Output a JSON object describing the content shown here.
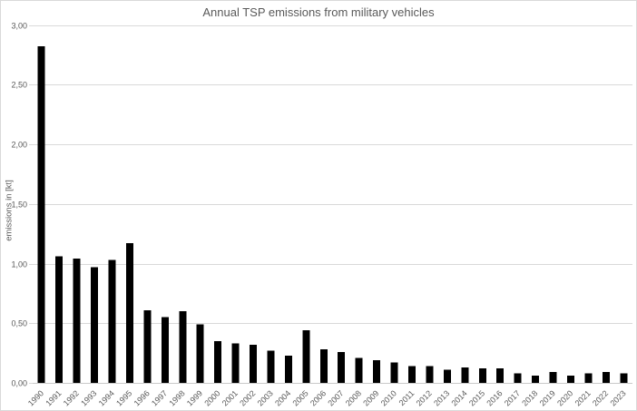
{
  "chart_data": {
    "type": "bar",
    "title": "Annual TSP emissions from military vehicles",
    "xlabel": "",
    "ylabel": "emissions in [kt]",
    "categories": [
      "1990",
      "1991",
      "1992",
      "1993",
      "1994",
      "1995",
      "1996",
      "1997",
      "1998",
      "1999",
      "2000",
      "2001",
      "2002",
      "2003",
      "2004",
      "2005",
      "2006",
      "2007",
      "2008",
      "2009",
      "2010",
      "2011",
      "2012",
      "2013",
      "2014",
      "2015",
      "2016",
      "2017",
      "2018",
      "2019",
      "2020",
      "2021",
      "2022",
      "2023"
    ],
    "values": [
      2.82,
      1.06,
      1.04,
      0.97,
      1.03,
      1.17,
      0.61,
      0.55,
      0.6,
      0.49,
      0.35,
      0.33,
      0.32,
      0.27,
      0.23,
      0.44,
      0.28,
      0.26,
      0.21,
      0.19,
      0.17,
      0.14,
      0.14,
      0.11,
      0.13,
      0.12,
      0.12,
      0.08,
      0.06,
      0.09,
      0.06,
      0.08,
      0.09,
      0.08
    ],
    "ylim": [
      0,
      3.0
    ],
    "ytick_step": 0.5,
    "ytick_labels": [
      "0,00",
      "0,50",
      "1,00",
      "1,50",
      "2,00",
      "2,50",
      "3,00"
    ],
    "decimal_separator": ",",
    "grid": true,
    "legend_position": "none",
    "x_label_rotation": -45,
    "colors": {
      "bar": "#000000",
      "gridline": "#d9d9d9",
      "axis_line": "#c9c9c9",
      "text": "#595959"
    }
  }
}
